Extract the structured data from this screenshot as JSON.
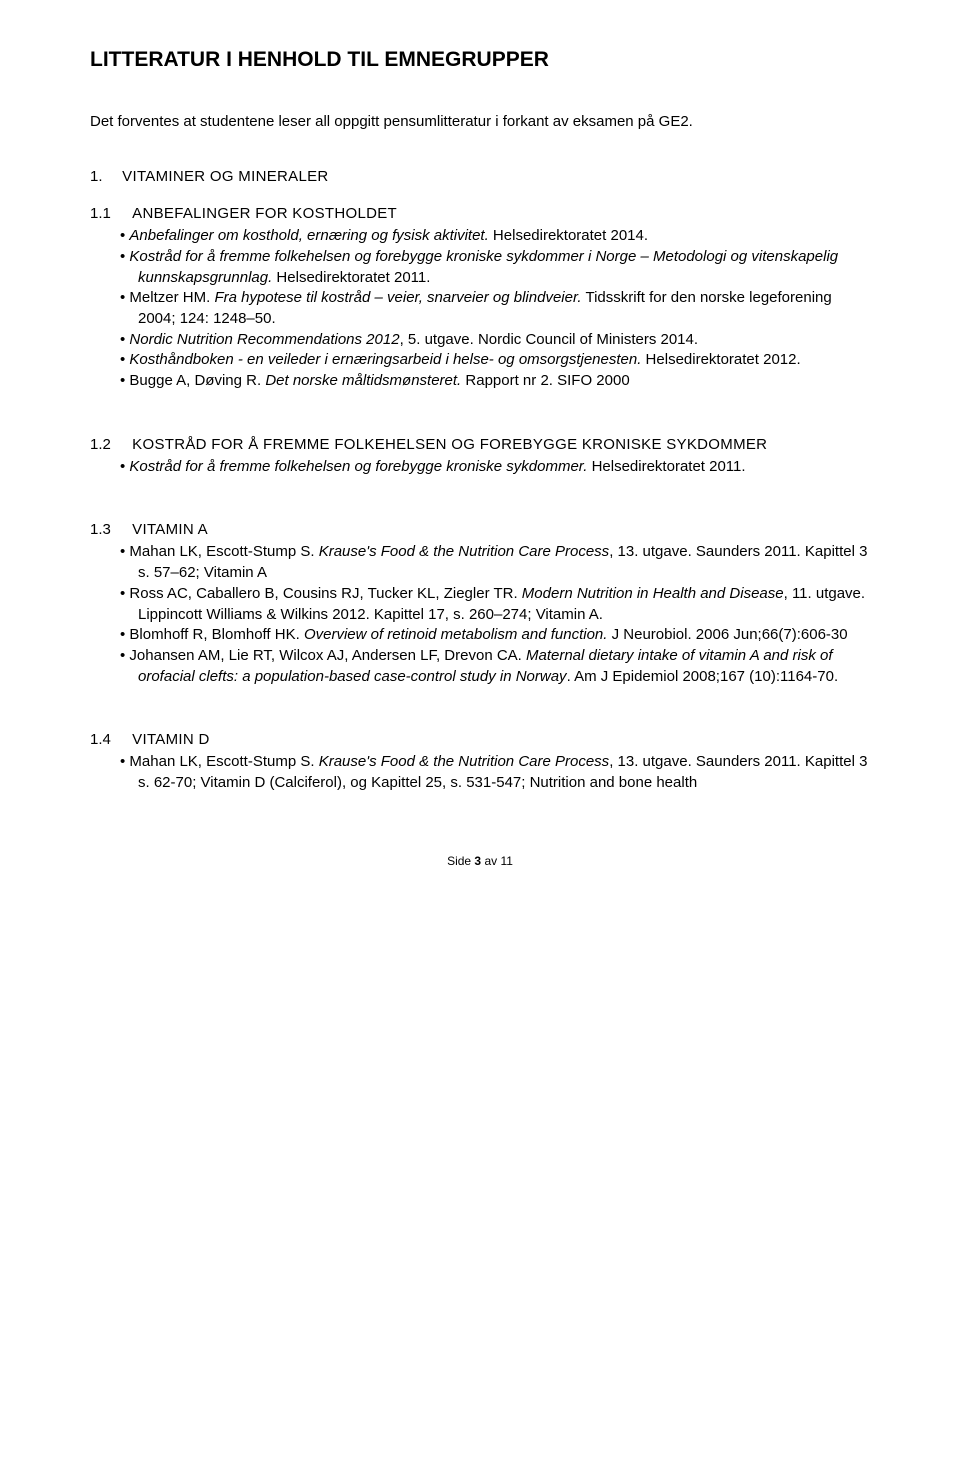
{
  "title": "LITTERATUR I HENHOLD TIL EMNEGRUPPER",
  "intro": "Det forventes at studentene leser all oppgitt pensumlitteratur i forkant av eksamen på GE2.",
  "section1": {
    "num": "1.",
    "label": "VITAMINER OG MINERALER"
  },
  "sub11": {
    "num": "1.1",
    "label": "ANBEFALINGER FOR KOSTHOLDET",
    "items": [
      [
        {
          "t": "Anbefalinger om kosthold, ernæring og fysisk aktivitet.",
          "i": true
        },
        {
          "t": " Helsedirektoratet 2014."
        }
      ],
      [
        {
          "t": "Kostråd for å fremme folkehelsen og forebygge kroniske sykdommer i Norge – Metodologi og vitenskapelig kunnskapsgrunnlag.",
          "i": true
        },
        {
          "t": " Helsedirektoratet 2011."
        }
      ],
      [
        {
          "t": "Meltzer HM. "
        },
        {
          "t": "Fra hypotese til kostråd – veier, snarveier og blindveier.",
          "i": true
        },
        {
          "t": " Tidsskrift for den norske legeforening 2004; 124: 1248–50."
        }
      ],
      [
        {
          "t": "Nordic Nutrition Recommendations 2012",
          "i": true
        },
        {
          "t": ", 5. utgave. Nordic Council of Ministers 2014."
        }
      ],
      [
        {
          "t": "Kosthåndboken - en veileder i ernæringsarbeid i helse- og omsorgstjenesten.",
          "i": true
        },
        {
          "t": " Helsedirektoratet 2012."
        }
      ],
      [
        {
          "t": "Bugge A, Døving R. "
        },
        {
          "t": "Det norske måltidsmønsteret.",
          "i": true
        },
        {
          "t": " Rapport nr 2. SIFO 2000"
        }
      ]
    ]
  },
  "sub12": {
    "num": "1.2",
    "label": "KOSTRÅD FOR Å FREMME FOLKEHELSEN OG FOREBYGGE KRONISKE SYKDOMMER",
    "items": [
      [
        {
          "t": "Kostråd for å fremme folkehelsen og forebygge kroniske sykdommer.",
          "i": true
        },
        {
          "t": " Helsedirektoratet 2011."
        }
      ]
    ]
  },
  "sub13": {
    "num": "1.3",
    "label": "VITAMIN A",
    "items": [
      [
        {
          "t": "Mahan LK, Escott-Stump S. "
        },
        {
          "t": "Krause's Food & the Nutrition Care Process",
          "i": true
        },
        {
          "t": ", 13. utgave. Saunders 2011. Kapittel 3 s. 57–62; Vitamin A"
        }
      ],
      [
        {
          "t": "Ross AC, Caballero B, Cousins RJ, Tucker KL, Ziegler TR. "
        },
        {
          "t": "Modern Nutrition in Health and Disease",
          "i": true
        },
        {
          "t": ", 11. utgave. Lippincott Williams & Wilkins 2012. Kapittel 17, s. 260–274; Vitamin A."
        }
      ],
      [
        {
          "t": "Blomhoff R, Blomhoff HK. "
        },
        {
          "t": "Overview of retinoid metabolism and function.",
          "i": true
        },
        {
          "t": " J Neurobiol. 2006 Jun;66(7):606-30"
        }
      ],
      [
        {
          "t": "Johansen AM, Lie RT, Wilcox AJ, Andersen LF, Drevon CA. "
        },
        {
          "t": "Maternal dietary intake of vitamin A and risk of orofacial clefts: a population-based case-control study in Norway",
          "i": true
        },
        {
          "t": ". Am J Epidemiol 2008;167 (10):1164-70."
        }
      ]
    ]
  },
  "sub14": {
    "num": "1.4",
    "label": "VITAMIN D",
    "items": [
      [
        {
          "t": "Mahan LK, Escott-Stump S. "
        },
        {
          "t": "Krause's Food & the Nutrition Care Process",
          "i": true
        },
        {
          "t": ", 13. utgave. Saunders 2011. Kapittel 3 s. 62-70; Vitamin D (Calciferol), og Kapittel 25, s. 531-547; Nutrition and bone health"
        }
      ]
    ]
  },
  "footer": {
    "left": "Side ",
    "bold": "3",
    "right": " av 11"
  }
}
